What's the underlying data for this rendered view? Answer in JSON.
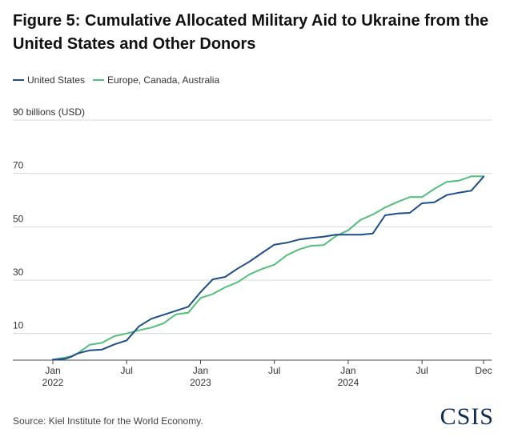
{
  "colors": {
    "us": "#1f4e8c",
    "eu": "#52c07a",
    "grid": "#d9d9d9",
    "axis": "#444444"
  },
  "source": "Source: Kiel Institute for the World Economy.",
  "logo": "CSIS",
  "chart_data": {
    "type": "line",
    "title": "Figure 5: Cumulative Allocated Military Aid to Ukraine from the United States and Other Donors",
    "ylabel": "90 billions (USD)",
    "ylim": [
      0,
      90
    ],
    "yticks": [
      10,
      30,
      50,
      70
    ],
    "top_tick_label": "90 billions (USD)",
    "x_range": [
      0,
      35
    ],
    "x_ticks": [
      {
        "x": 0,
        "line1": "Jan",
        "line2": "2022"
      },
      {
        "x": 6,
        "line1": "Jul",
        "line2": ""
      },
      {
        "x": 12,
        "line1": "Jan",
        "line2": "2023"
      },
      {
        "x": 18,
        "line1": "Jul",
        "line2": ""
      },
      {
        "x": 24,
        "line1": "Jan",
        "line2": "2024"
      },
      {
        "x": 30,
        "line1": "Jul",
        "line2": ""
      },
      {
        "x": 35,
        "line1": "Dec",
        "line2": ""
      }
    ],
    "x_unit": "months since Jan 2022",
    "x": [
      0,
      1,
      1.5,
      2,
      3,
      4,
      5,
      6,
      7,
      8,
      9,
      10,
      11,
      12,
      13,
      14,
      15,
      16,
      17,
      18,
      19,
      20,
      21,
      22,
      23,
      24,
      25,
      26,
      27,
      28,
      29,
      30,
      31,
      32,
      33,
      34,
      35
    ],
    "series": [
      {
        "name": "United States",
        "values": [
          0.2,
          0.5,
          1.3,
          2.5,
          3.7,
          4,
          5.9,
          7.4,
          12.7,
          15.5,
          17,
          18.5,
          20,
          25.5,
          30.3,
          31.2,
          34.3,
          37,
          40.2,
          43.3,
          44,
          45.2,
          45.8,
          46.3,
          47,
          47,
          47,
          47.5,
          54.3,
          55,
          55.2,
          58.8,
          59.2,
          61.9,
          62.8,
          63.5,
          68.8
        ]
      },
      {
        "name": "Europe, Canada, Australia",
        "values": [
          0.2,
          1,
          1.5,
          2.5,
          5.8,
          6.5,
          9,
          10,
          11.2,
          12.2,
          13.8,
          17.2,
          17.8,
          23.3,
          24.8,
          27.3,
          29.2,
          32.2,
          34.2,
          35.8,
          39.3,
          41.5,
          42.9,
          43.1,
          46.5,
          48.7,
          52.6,
          54.6,
          57.2,
          59.3,
          61.1,
          61.1,
          64.2,
          66.8,
          67.3,
          68.9,
          68.9
        ]
      }
    ]
  }
}
